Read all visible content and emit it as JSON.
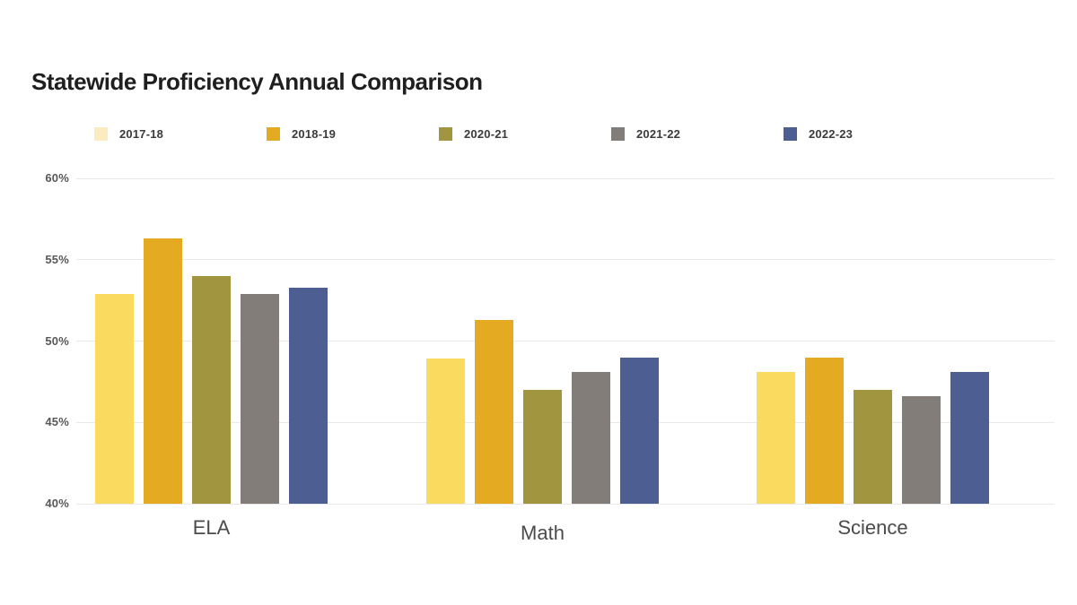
{
  "title": "Statewide Proficiency Annual Comparison",
  "chart_data": {
    "type": "bar",
    "title": "Statewide Proficiency Annual Comparison",
    "categories": [
      "ELA",
      "Math",
      "Science"
    ],
    "series": [
      {
        "name": "2017-18",
        "color": "#FBDB5F",
        "legend_color": "#FBEBBE",
        "values": [
          52.9,
          48.9,
          48.1
        ]
      },
      {
        "name": "2018-19",
        "color": "#E4AA22",
        "legend_color": "#E4AA22",
        "values": [
          56.3,
          51.3,
          49.0
        ]
      },
      {
        "name": "2020-21",
        "color": "#A19540",
        "legend_color": "#A19540",
        "values": [
          54.0,
          47.0,
          47.0
        ]
      },
      {
        "name": "2021-22",
        "color": "#837D79",
        "legend_color": "#837D79",
        "values": [
          52.9,
          48.1,
          46.6
        ]
      },
      {
        "name": "2022-23",
        "color": "#4C5E92",
        "legend_color": "#4C5E92",
        "values": [
          53.3,
          49.0,
          48.1
        ]
      }
    ],
    "xlabel": "",
    "ylabel": "",
    "ylim": [
      40,
      60
    ],
    "y_ticks": [
      60,
      55,
      50,
      45,
      40
    ],
    "y_tick_labels": [
      "60%",
      "55%",
      "50%",
      "45%",
      "40%"
    ],
    "grid": true,
    "legend_position": "top"
  },
  "colors": {
    "background": "#ffffff",
    "gridline": "#e9e9e9",
    "title_text": "#1f1f1f",
    "tick_text": "#585858",
    "category_text": "#4b4b4b",
    "legend_text": "#3b3b3b"
  }
}
